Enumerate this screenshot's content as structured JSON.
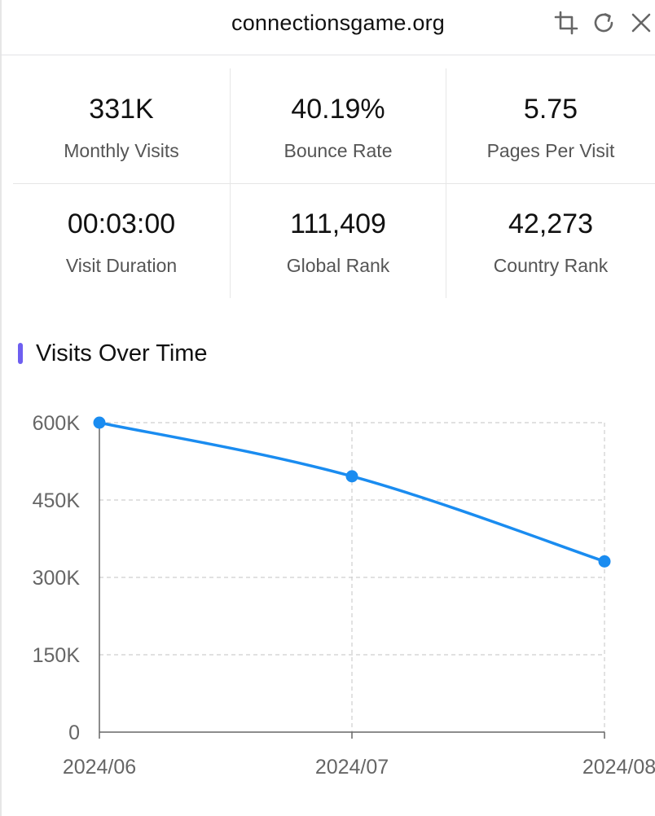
{
  "header": {
    "title": "connectionsgame.org",
    "icons": [
      "crop-icon",
      "refresh-icon",
      "close-icon"
    ]
  },
  "stats": [
    {
      "value": "331K",
      "label": "Monthly Visits"
    },
    {
      "value": "40.19%",
      "label": "Bounce Rate"
    },
    {
      "value": "5.75",
      "label": "Pages Per Visit"
    },
    {
      "value": "00:03:00",
      "label": "Visit Duration"
    },
    {
      "value": "111,409",
      "label": "Global Rank"
    },
    {
      "value": "42,273",
      "label": "Country Rank"
    }
  ],
  "section": {
    "title": "Visits Over Time",
    "accent": "#6e5ff0"
  },
  "chart_data": {
    "type": "line",
    "title": "Visits Over Time",
    "categories": [
      "2024/06",
      "2024/07",
      "2024/08"
    ],
    "series": [
      {
        "name": "Visits",
        "values": [
          600000,
          496000,
          331000
        ],
        "color": "#1a8cf0"
      }
    ],
    "yticks": [
      0,
      150000,
      300000,
      450000,
      600000
    ],
    "ytick_labels": [
      "0",
      "150K",
      "300K",
      "450K",
      "600K"
    ],
    "ylim": [
      0,
      600000
    ],
    "grid": true,
    "xlabel": "",
    "ylabel": ""
  }
}
